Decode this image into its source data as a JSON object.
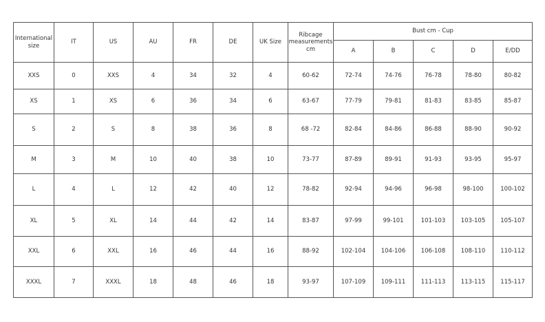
{
  "headers": {
    "international": "International size",
    "it": "IT",
    "us": "US",
    "au": "AU",
    "fr": "FR",
    "de": "DE",
    "uk": "UK Size",
    "ribcage": "Ribcage measurements cm",
    "bust": "Bust cm - Cup",
    "cups": [
      "A",
      "B",
      "C",
      "D",
      "E/DD"
    ]
  },
  "rows": [
    [
      "XXS",
      "0",
      "XXS",
      "4",
      "34",
      "32",
      "4",
      "60-62",
      "72-74",
      "74-76",
      "76-78",
      "78-80",
      "80-82"
    ],
    [
      "XS",
      "1",
      "XS",
      "6",
      "36",
      "34",
      "6",
      "63-67",
      "77-79",
      "79-81",
      "81-83",
      "83-85",
      "85-87"
    ],
    [
      "S",
      "2",
      "S",
      "8",
      "38",
      "36",
      "8",
      "68 -72",
      "82-84",
      "84-86",
      "86-88",
      "88-90",
      "90-92"
    ],
    [
      "M",
      "3",
      "M",
      "10",
      "40",
      "38",
      "10",
      "73-77",
      "87-89",
      "89-91",
      "91-93",
      "93-95",
      "95-97"
    ],
    [
      "L",
      "4",
      "L",
      "12",
      "42",
      "40",
      "12",
      "78-82",
      "92-94",
      "94-96",
      "96-98",
      "98-100",
      "100-102"
    ],
    [
      "XL",
      "5",
      "XL",
      "14",
      "44",
      "42",
      "14",
      "83-87",
      "97-99",
      "99-101",
      "101-103",
      "103-105",
      "105-107"
    ],
    [
      "XXL",
      "6",
      "XXL",
      "16",
      "46",
      "44",
      "16",
      "88-92",
      "102-104",
      "104-106",
      "106-108",
      "108-110",
      "110-112"
    ],
    [
      "XXXL",
      "7",
      "XXXL",
      "18",
      "48",
      "46",
      "18",
      "93-97",
      "107-109",
      "109-111",
      "111-113",
      "113-115",
      "115-117"
    ]
  ]
}
